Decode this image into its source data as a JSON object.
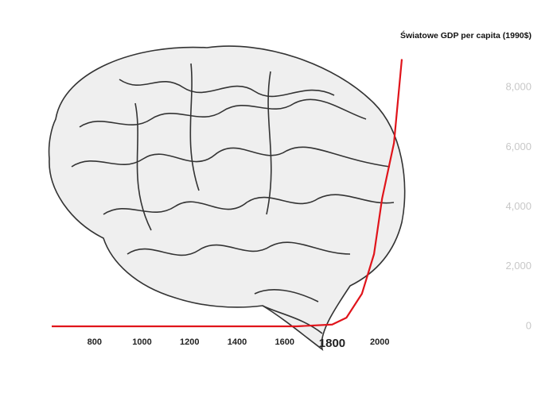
{
  "chart_data": {
    "type": "line",
    "y_axis_label": "Światowe GDP per capita (1990$)",
    "x": [
      620,
      1650,
      1800,
      1860,
      1925,
      1976,
      2010,
      2060,
      2093
    ],
    "series": [
      {
        "color": "#e0141b",
        "values": [
          0,
          0,
          60,
          290,
          1090,
          2420,
          4280,
          6140,
          8950
        ]
      }
    ],
    "xlim": [
      620,
      2093
    ],
    "xticks": [
      800,
      1000,
      1200,
      1400,
      1600,
      1800,
      2000
    ],
    "ylim": [
      0,
      9000
    ],
    "yticks": [
      0,
      {
        "value": 2000,
        "label": "2,000"
      },
      {
        "value": 4000,
        "label": "4,000"
      },
      {
        "value": 6000,
        "label": "6,000"
      },
      {
        "value": 8000,
        "label": "8,000"
      }
    ],
    "grid": false
  }
}
